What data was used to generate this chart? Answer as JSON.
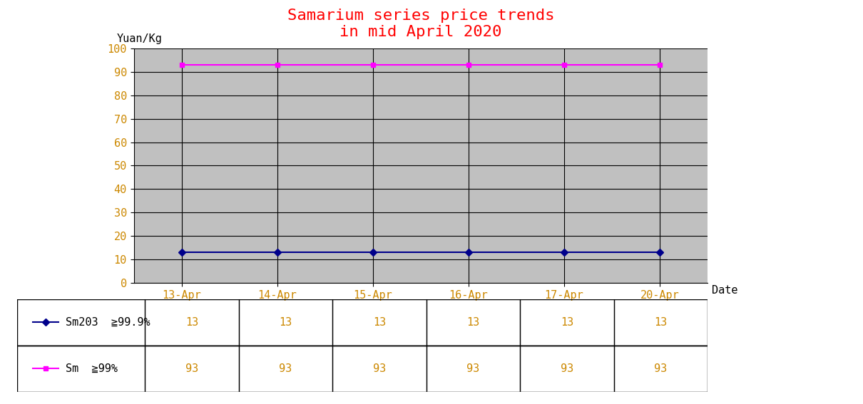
{
  "title": "Samarium series price trends\nin mid April 2020",
  "title_color": "#FF0000",
  "ylabel": "Yuan/Kg",
  "xlabel": "Date",
  "dates": [
    "13-Apr",
    "14-Apr",
    "15-Apr",
    "16-Apr",
    "17-Apr",
    "20-Apr"
  ],
  "series": [
    {
      "label": "Sm203  ≧99.9%",
      "values": [
        13,
        13,
        13,
        13,
        13,
        13
      ],
      "color": "#00008B",
      "marker": "D",
      "marker_color": "#00008B"
    },
    {
      "label": "Sm  ≧99%",
      "values": [
        93,
        93,
        93,
        93,
        93,
        93
      ],
      "color": "#FF00FF",
      "marker": "s",
      "marker_color": "#FF00FF"
    }
  ],
  "ylim": [
    0,
    100
  ],
  "yticks": [
    0,
    10,
    20,
    30,
    40,
    50,
    60,
    70,
    80,
    90,
    100
  ],
  "plot_bg_color": "#C0C0C0",
  "fig_bg_color": "#FFFFFF",
  "grid_color": "#000000",
  "table_value_color": "#CC8800",
  "table_label_color": "#000000",
  "font_family": "monospace",
  "title_fontsize": 16,
  "tick_fontsize": 11,
  "table_fontsize": 11
}
